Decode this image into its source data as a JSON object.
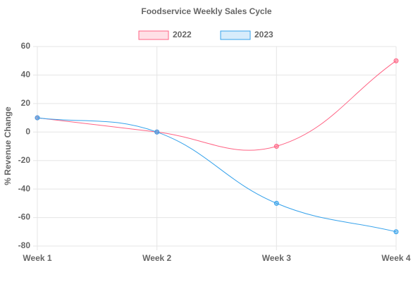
{
  "chart_data": {
    "type": "line",
    "title": "Foodservice Weekly Sales Cycle",
    "y_label": "% Revenue Change",
    "categories": [
      "Week 1",
      "Week 2",
      "Week 3",
      "Week 4"
    ],
    "series": [
      {
        "name": "2022",
        "color": "#ff6384",
        "values": [
          10,
          0,
          -10,
          50
        ]
      },
      {
        "name": "2023",
        "color": "#36a2eb",
        "values": [
          10,
          0,
          -50,
          -70
        ]
      }
    ],
    "ylim": [
      -80,
      60
    ],
    "yticks": [
      -80,
      -60,
      -40,
      -20,
      0,
      20,
      40,
      60
    ],
    "grid": true,
    "legend": "top"
  }
}
